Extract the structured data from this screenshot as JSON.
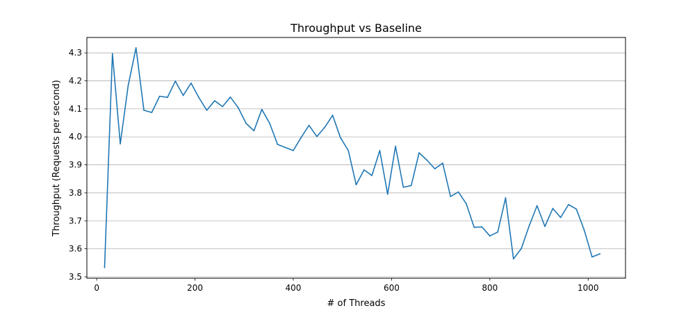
{
  "chart_data": {
    "type": "line",
    "title": "Throughput vs Baseline",
    "xlabel": "# of Threads",
    "ylabel": "Throughput (Requests per second)",
    "xlim": [
      -20,
      1076
    ],
    "ylim": [
      3.495,
      4.355
    ],
    "x_ticks": [
      0,
      200,
      400,
      600,
      800,
      1000
    ],
    "y_ticks": [
      3.5,
      3.6,
      3.7,
      3.8,
      3.9,
      4.0,
      4.1,
      4.2,
      4.3
    ],
    "x_tick_labels": [
      "0",
      "200",
      "400",
      "600",
      "800",
      "1000"
    ],
    "y_tick_labels": [
      "3.5",
      "3.6",
      "3.7",
      "3.8",
      "3.9",
      "4.0",
      "4.1",
      "4.2",
      "4.3"
    ],
    "grid": "horizontal",
    "series": [
      {
        "color": "#1f77b4",
        "x": [
          16,
          32,
          48,
          64,
          80,
          96,
          112,
          128,
          144,
          160,
          176,
          192,
          208,
          224,
          240,
          256,
          272,
          288,
          304,
          320,
          336,
          352,
          368,
          384,
          400,
          416,
          432,
          448,
          464,
          480,
          496,
          512,
          528,
          544,
          560,
          576,
          592,
          608,
          624,
          640,
          656,
          672,
          688,
          704,
          720,
          736,
          752,
          768,
          784,
          800,
          816,
          832,
          848,
          864,
          880,
          896,
          912,
          928,
          944,
          960,
          976,
          992,
          1008,
          1024
        ],
        "y": [
          3.533,
          4.297,
          3.975,
          4.183,
          4.318,
          4.095,
          4.087,
          4.145,
          4.141,
          4.199,
          4.148,
          4.192,
          4.14,
          4.095,
          4.129,
          4.108,
          4.142,
          4.104,
          4.048,
          4.022,
          4.098,
          4.048,
          3.973,
          3.962,
          3.951,
          3.998,
          4.041,
          4.001,
          4.034,
          4.077,
          3.997,
          3.951,
          3.829,
          3.882,
          3.862,
          3.951,
          3.795,
          3.966,
          3.82,
          3.826,
          3.943,
          3.917,
          3.886,
          3.906,
          3.787,
          3.803,
          3.761,
          3.677,
          3.678,
          3.646,
          3.66,
          3.782,
          3.564,
          3.601,
          3.682,
          3.754,
          3.68,
          3.744,
          3.712,
          3.758,
          3.742,
          3.667,
          3.571,
          3.582
        ]
      }
    ]
  }
}
